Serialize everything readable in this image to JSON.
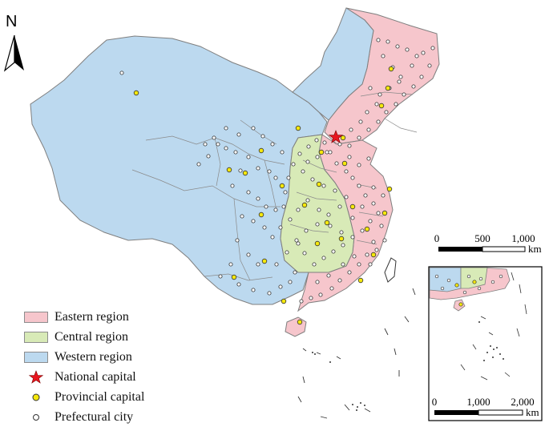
{
  "compass": {
    "label": "N",
    "icon": "north-arrow-icon"
  },
  "legend": {
    "items": [
      {
        "label": "Eastern region",
        "color": "#f6c6cc",
        "symbol": "swatch"
      },
      {
        "label": "Central region",
        "color": "#d8eab7",
        "symbol": "swatch"
      },
      {
        "label": "Western region",
        "color": "#bcd9ef",
        "symbol": "swatch"
      },
      {
        "label": "National capital",
        "color": "#e8161f",
        "symbol": "star-icon"
      },
      {
        "label": "Provincial capital",
        "color": "#f5e80c",
        "symbol": "yellow-dot-icon"
      },
      {
        "label": "Prefectural city",
        "color": "#ffffff",
        "symbol": "white-dot-icon"
      }
    ]
  },
  "scale_main": {
    "ticks": [
      "0",
      "500",
      "1,000"
    ],
    "unit": "km"
  },
  "scale_inset": {
    "ticks": [
      "0",
      "1,000",
      "2,000"
    ],
    "unit": "km"
  },
  "colors": {
    "eastern": "#f6c6cc",
    "central": "#d8eab7",
    "western": "#bcd9ef",
    "border": "#7f7f7f",
    "capital": "#e8161f",
    "provincial": "#f5e80c"
  }
}
